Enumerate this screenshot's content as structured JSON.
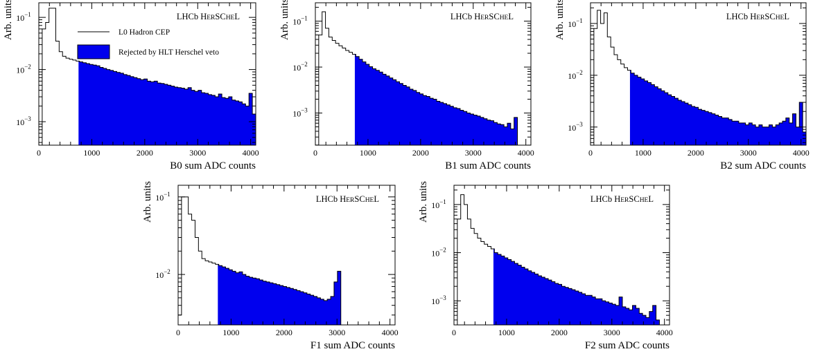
{
  "chart_data": [
    {
      "type": "histogram",
      "panel": "B0",
      "xlabel": "B0 sum ADC counts",
      "ylabel": "Arb. units",
      "experiment_label": "LHCb HERSCHEL",
      "xlim": [
        0,
        4096
      ],
      "y_scale": "log",
      "x_ticks": [
        0,
        1000,
        2000,
        3000,
        4000
      ],
      "y_tick_labels": [
        "10^-3",
        "10^-2",
        "10^-1"
      ],
      "veto_threshold": 750,
      "bin_width": 64,
      "series": [
        {
          "name": "L0 Hadron CEP",
          "style": "outline"
        },
        {
          "name": "Rejected by HLT Herschel veto",
          "style": "filled",
          "color": "#0000ee"
        }
      ],
      "values": [
        0.00015,
        0.06,
        0.08,
        0.15,
        0.15,
        0.035,
        0.022,
        0.018,
        0.0165,
        0.0158,
        0.0152,
        0.0145,
        0.014,
        0.0135,
        0.013,
        0.0125,
        0.0122,
        0.0118,
        0.011,
        0.0105,
        0.01,
        0.0096,
        0.0092,
        0.0088,
        0.0085,
        0.008,
        0.0077,
        0.0073,
        0.007,
        0.0067,
        0.0064,
        0.0066,
        0.006,
        0.0058,
        0.006,
        0.0055,
        0.0054,
        0.0052,
        0.005,
        0.0048,
        0.0046,
        0.0045,
        0.0044,
        0.0042,
        0.0045,
        0.004,
        0.0038,
        0.004,
        0.0036,
        0.0035,
        0.0033,
        0.0032,
        0.003,
        0.0034,
        0.0029,
        0.0028,
        0.003,
        0.0026,
        0.0025,
        0.0024,
        0.0022,
        0.002,
        0.0035,
        0.0014
      ]
    },
    {
      "type": "histogram",
      "panel": "B1",
      "xlabel": "B1 sum ADC counts",
      "ylabel": "Arb. units",
      "experiment_label": "LHCb HERSCHEL",
      "xlim": [
        0,
        4096
      ],
      "y_scale": "log",
      "x_ticks": [
        0,
        1000,
        2000,
        3000,
        4000
      ],
      "y_tick_labels": [
        "10^-3",
        "10^-2",
        "10^-1"
      ],
      "veto_threshold": 750,
      "bin_width": 64,
      "values": [
        0.0002,
        0.05,
        0.16,
        0.07,
        0.045,
        0.038,
        0.033,
        0.029,
        0.026,
        0.023,
        0.021,
        0.019,
        0.017,
        0.0148,
        0.013,
        0.0115,
        0.0102,
        0.0092,
        0.0085,
        0.0078,
        0.007,
        0.0064,
        0.0058,
        0.0053,
        0.0048,
        0.0044,
        0.004,
        0.0037,
        0.0033,
        0.0031,
        0.0028,
        0.0026,
        0.0024,
        0.0023,
        0.0021,
        0.002,
        0.0018,
        0.0017,
        0.0016,
        0.0015,
        0.0014,
        0.0013,
        0.00125,
        0.00115,
        0.00108,
        0.001,
        0.00095,
        0.0009,
        0.00086,
        0.0008,
        0.00075,
        0.0007,
        0.00068,
        0.00062,
        0.00058,
        0.00056,
        0.0005,
        0.0006,
        0.00045,
        0.0008
      ]
    },
    {
      "type": "histogram",
      "panel": "B2",
      "xlabel": "B2 sum ADC counts",
      "ylabel": "Arb. units",
      "experiment_label": "LHCb HERSCHEL",
      "xlim": [
        0,
        4096
      ],
      "y_scale": "log",
      "x_ticks": [
        0,
        1000,
        2000,
        3000,
        4000
      ],
      "y_tick_labels": [
        "10^-3",
        "10^-2",
        "10^-1"
      ],
      "veto_threshold": 750,
      "bin_width": 64,
      "values": [
        0.0004,
        0.08,
        0.18,
        0.1,
        0.16,
        0.055,
        0.035,
        0.025,
        0.02,
        0.0165,
        0.014,
        0.0125,
        0.011,
        0.01,
        0.0092,
        0.0085,
        0.0078,
        0.0072,
        0.0066,
        0.006,
        0.0055,
        0.005,
        0.0046,
        0.0042,
        0.0039,
        0.0036,
        0.0033,
        0.0031,
        0.0029,
        0.0027,
        0.0025,
        0.0024,
        0.0022,
        0.0021,
        0.002,
        0.0019,
        0.0018,
        0.0017,
        0.0016,
        0.0015,
        0.0015,
        0.0014,
        0.0013,
        0.0013,
        0.0012,
        0.0012,
        0.0011,
        0.0012,
        0.0011,
        0.001,
        0.0011,
        0.001,
        0.001,
        0.0011,
        0.001,
        0.0011,
        0.0012,
        0.0013,
        0.0015,
        0.0012,
        0.0018,
        0.001,
        0.003,
        0.0008
      ]
    },
    {
      "type": "histogram",
      "panel": "F1",
      "xlabel": "F1 sum ADC counts",
      "ylabel": "Arb. units",
      "experiment_label": "LHCb HERSCHEL",
      "xlim": [
        0,
        4096
      ],
      "y_scale": "log",
      "x_ticks": [
        0,
        1000,
        2000,
        3000,
        4000
      ],
      "y_tick_labels": [
        "10^-2",
        "10^-1"
      ],
      "veto_threshold": 750,
      "bin_width": 64,
      "values": [
        0.003,
        0.1,
        0.1,
        0.06,
        0.05,
        0.03,
        0.02,
        0.016,
        0.015,
        0.0145,
        0.014,
        0.0135,
        0.013,
        0.0125,
        0.012,
        0.0115,
        0.011,
        0.0105,
        0.0108,
        0.01,
        0.0095,
        0.0092,
        0.009,
        0.0088,
        0.0085,
        0.0082,
        0.008,
        0.0078,
        0.0076,
        0.0074,
        0.0072,
        0.007,
        0.0068,
        0.0066,
        0.0064,
        0.0062,
        0.006,
        0.0058,
        0.0056,
        0.0054,
        0.0052,
        0.005,
        0.0048,
        0.0046,
        0.0048,
        0.0052,
        0.008,
        0.011
      ]
    },
    {
      "type": "histogram",
      "panel": "F2",
      "xlabel": "F2 sum ADC counts",
      "ylabel": "Arb. units",
      "experiment_label": "LHCb HERSCHEL",
      "xlim": [
        0,
        4096
      ],
      "y_scale": "log",
      "x_ticks": [
        0,
        1000,
        2000,
        3000,
        4000
      ],
      "y_tick_labels": [
        "10^-3",
        "10^-2",
        "10^-1"
      ],
      "veto_threshold": 750,
      "bin_width": 64,
      "values": [
        0.0003,
        0.05,
        0.16,
        0.1,
        0.05,
        0.032,
        0.025,
        0.02,
        0.017,
        0.015,
        0.0135,
        0.012,
        0.01,
        0.0092,
        0.0085,
        0.0078,
        0.0072,
        0.0066,
        0.006,
        0.0055,
        0.005,
        0.0046,
        0.0042,
        0.0039,
        0.0036,
        0.0033,
        0.0031,
        0.0029,
        0.0027,
        0.0025,
        0.0023,
        0.0022,
        0.002,
        0.0019,
        0.0018,
        0.0017,
        0.0016,
        0.0015,
        0.0014,
        0.0013,
        0.0013,
        0.0012,
        0.0011,
        0.0011,
        0.001,
        0.00095,
        0.0009,
        0.00085,
        0.0008,
        0.0012,
        0.00075,
        0.0007,
        0.00065,
        0.0008,
        0.0007,
        0.00055,
        0.0005,
        0.00045,
        0.0006,
        0.0008,
        0.0004
      ]
    }
  ],
  "legend": {
    "outline_label": "L0 Hadron CEP",
    "filled_label": "Rejected by HLT Herschel veto"
  },
  "fill_color": "#0000ee"
}
